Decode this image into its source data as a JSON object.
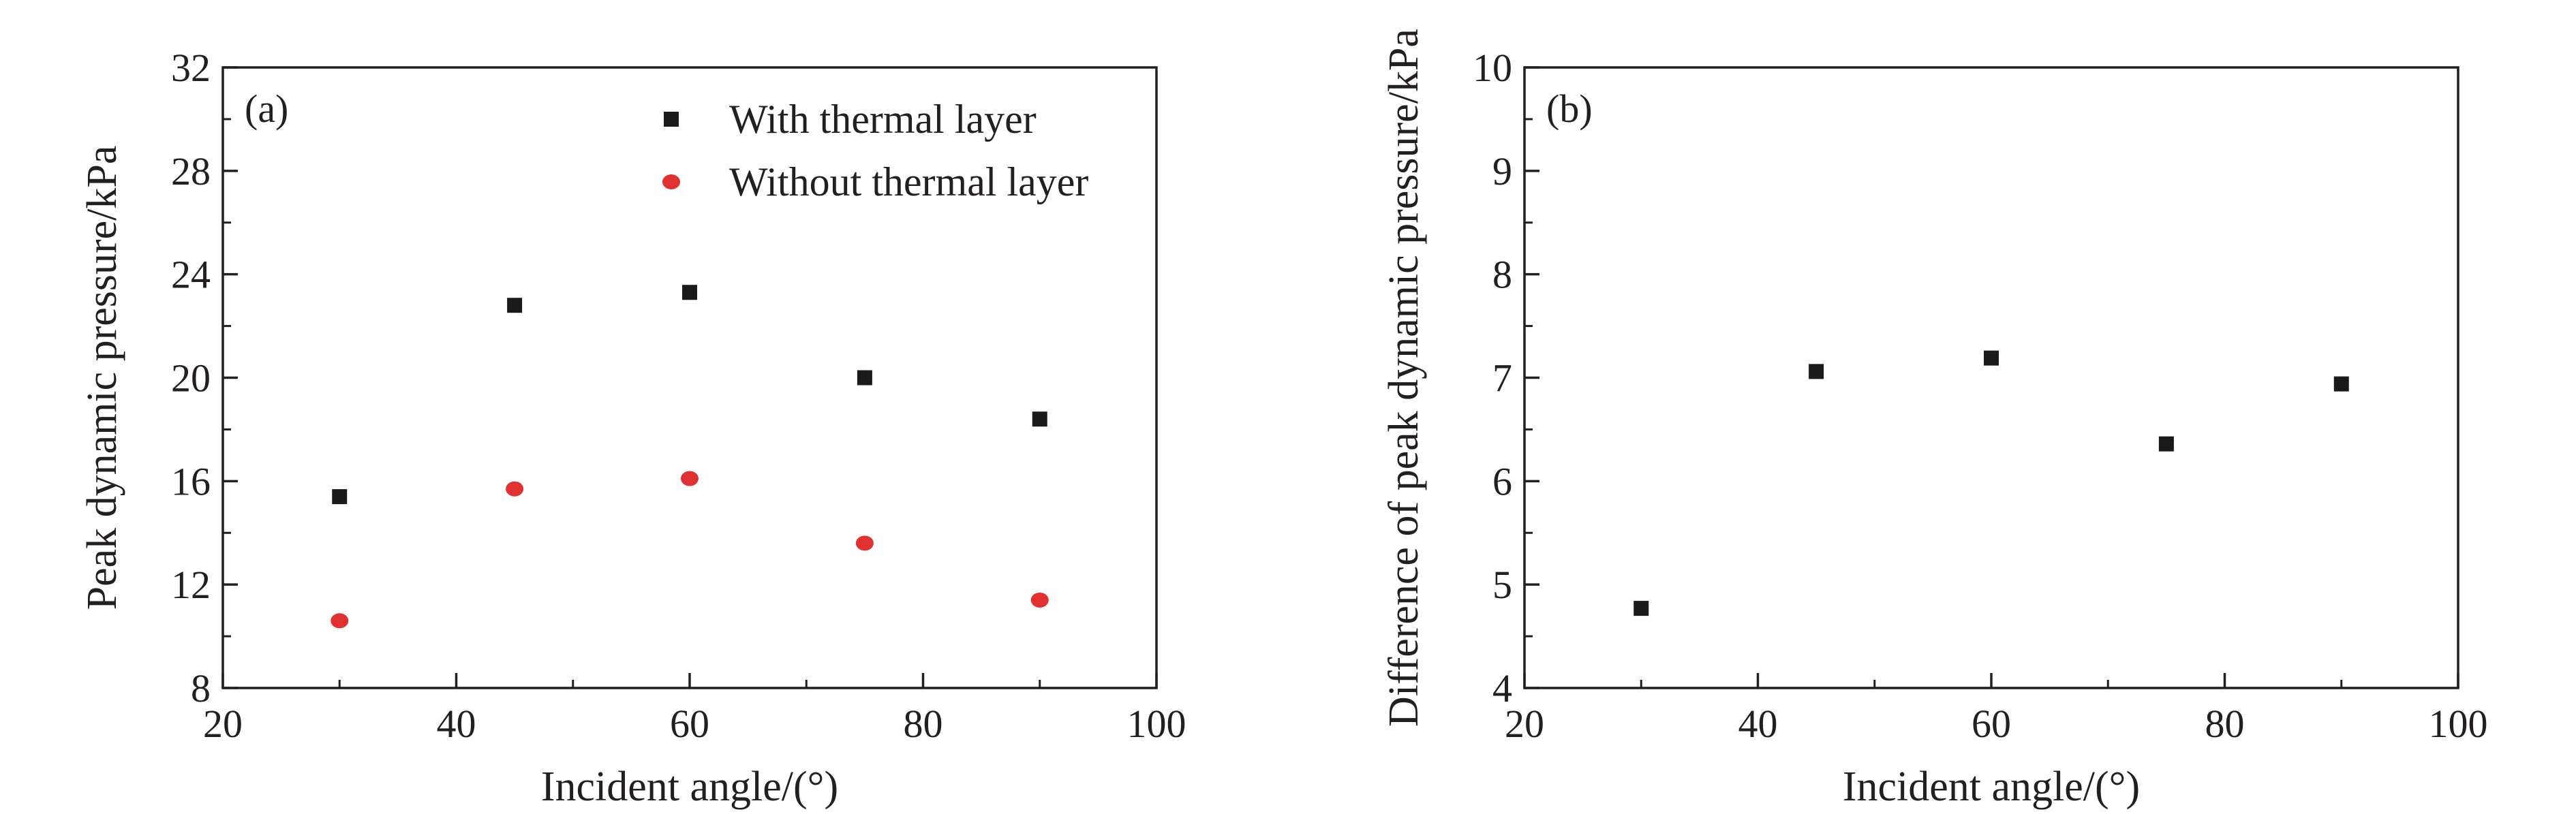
{
  "chart_data": [
    {
      "type": "scatter",
      "panel_label": "(a)",
      "xlabel": "Incident angle/(°)",
      "ylabel": "Peak dynamic pressure/kPa",
      "xlim": [
        20,
        100
      ],
      "ylim": [
        8,
        32
      ],
      "x_ticks": [
        "20",
        "40",
        "60",
        "80",
        "100"
      ],
      "y_ticks": [
        "8",
        "12",
        "16",
        "20",
        "24",
        "28",
        "32"
      ],
      "legend_position": "top-right",
      "grid": false,
      "series": [
        {
          "name": "With thermal layer",
          "marker": "square",
          "color": "#1a1a1a",
          "x": [
            30,
            45,
            60,
            75,
            90
          ],
          "y": [
            15.4,
            22.8,
            23.3,
            20.0,
            18.4
          ]
        },
        {
          "name": "Without thermal layer",
          "marker": "circle",
          "color": "#e03030",
          "x": [
            30,
            45,
            60,
            75,
            90
          ],
          "y": [
            10.6,
            15.7,
            16.1,
            13.6,
            11.4
          ]
        }
      ]
    },
    {
      "type": "scatter",
      "panel_label": "(b)",
      "xlabel": "Incident angle/(°)",
      "ylabel": "Difference of peak dynamic pressure/kPa",
      "xlim": [
        20,
        100
      ],
      "ylim": [
        4,
        10
      ],
      "x_ticks": [
        "20",
        "40",
        "60",
        "80",
        "100"
      ],
      "y_ticks": [
        "4",
        "5",
        "6",
        "7",
        "8",
        "9",
        "10"
      ],
      "grid": false,
      "series": [
        {
          "marker": "square",
          "color": "#1a1a1a",
          "x": [
            30,
            45,
            60,
            75,
            90
          ],
          "y": [
            4.77,
            7.06,
            7.19,
            6.36,
            6.94
          ]
        }
      ]
    }
  ]
}
